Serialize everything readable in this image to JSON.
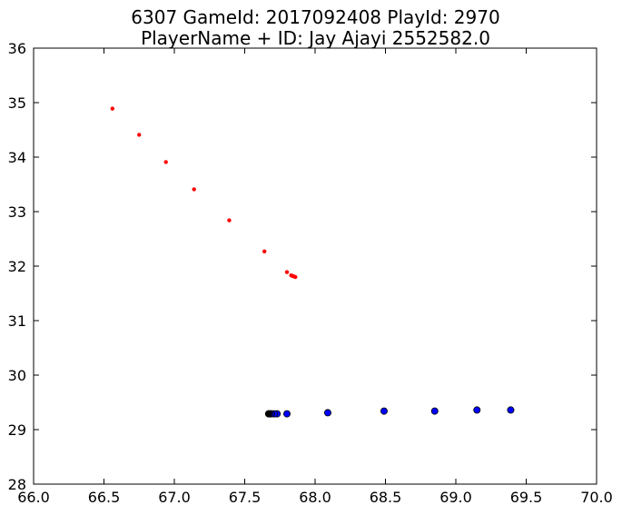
{
  "chart_data": {
    "type": "scatter",
    "title": [
      "6307 GameId: 2017092408 PlayId: 2970",
      "PlayerName + ID: Jay Ajayi 2552582.0"
    ],
    "xlabel": "",
    "ylabel": "",
    "xlim": [
      66.0,
      70.0
    ],
    "ylim": [
      28,
      36
    ],
    "xticks": [
      "66.0",
      "66.5",
      "67.0",
      "67.5",
      "68.0",
      "68.5",
      "69.0",
      "69.5",
      "70.0"
    ],
    "yticks": [
      "28",
      "29",
      "30",
      "31",
      "32",
      "33",
      "34",
      "35",
      "36"
    ],
    "grid": false,
    "series": [
      {
        "color": "#ff0000",
        "marker_size": "small",
        "points": [
          [
            66.56,
            34.89
          ],
          [
            66.75,
            34.41
          ],
          [
            66.94,
            33.91
          ],
          [
            67.14,
            33.41
          ],
          [
            67.39,
            32.84
          ],
          [
            67.64,
            32.27
          ],
          [
            67.8,
            31.89
          ],
          [
            67.83,
            31.83
          ],
          [
            67.84,
            31.82
          ],
          [
            67.85,
            31.81
          ],
          [
            67.86,
            31.8
          ]
        ]
      },
      {
        "color": "#0000ff",
        "marker_size": "large",
        "points": [
          [
            69.39,
            29.36
          ],
          [
            69.15,
            29.36
          ],
          [
            68.85,
            29.34
          ],
          [
            68.49,
            29.34
          ],
          [
            68.09,
            29.31
          ],
          [
            67.8,
            29.29
          ],
          [
            67.73,
            29.29
          ],
          [
            67.71,
            29.29
          ],
          [
            67.69,
            29.29
          ],
          [
            67.68,
            29.29
          ],
          [
            67.67,
            29.29
          ]
        ]
      }
    ],
    "final_marker_color": "#000000"
  }
}
